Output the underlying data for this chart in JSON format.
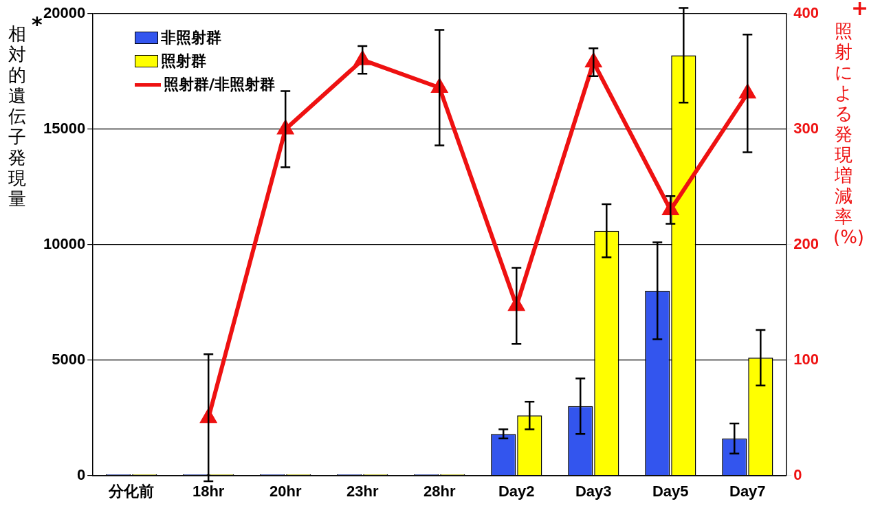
{
  "chart_data": {
    "type": "bar",
    "categories": [
      "分化前",
      "18hr",
      "20hr",
      "23hr",
      "28hr",
      "Day2",
      "Day3",
      "Day5",
      "Day7"
    ],
    "ylabel": "相対的遺伝子発現量",
    "y2label": "照射による発現増減率(%)",
    "annotations": [
      "*",
      "+"
    ],
    "ylim": [
      0,
      20000
    ],
    "yticks": [
      0,
      5000,
      10000,
      15000,
      20000
    ],
    "y2lim": [
      0,
      400
    ],
    "y2ticks": [
      0,
      100,
      200,
      300,
      400
    ],
    "grid": "y",
    "legend": "top left",
    "series": [
      {
        "name": "非照射群",
        "color": "#3355ee",
        "values": [
          50,
          50,
          50,
          50,
          50,
          1800,
          3000,
          8000,
          1600
        ],
        "errors": [
          null,
          null,
          null,
          null,
          null,
          200,
          1200,
          2100,
          650
        ]
      },
      {
        "name": "照射群",
        "color": "#ffff00",
        "values": [
          50,
          50,
          50,
          50,
          50,
          2600,
          10600,
          18200,
          5100
        ],
        "errors": [
          null,
          null,
          null,
          null,
          null,
          600,
          1150,
          2050,
          1200
        ]
      },
      {
        "name": "照射群/非照射群",
        "type": "line",
        "axis": "y2",
        "color": "#ee1111",
        "marker": "triangle",
        "values": [
          null,
          50,
          300,
          360,
          336,
          147,
          358,
          230,
          331
        ],
        "errors": [
          null,
          55,
          33,
          12,
          50,
          33,
          12,
          12,
          51
        ]
      }
    ]
  }
}
